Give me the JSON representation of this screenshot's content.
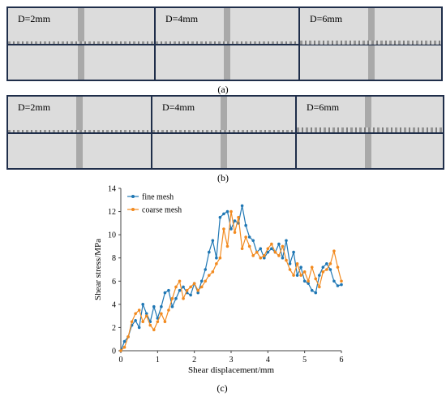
{
  "figure_a": {
    "caption": "(a)",
    "panels": [
      {
        "label": "D=2mm"
      },
      {
        "label": "D=4mm"
      },
      {
        "label": "D=6mm"
      }
    ]
  },
  "figure_b": {
    "caption": "(b)",
    "panels": [
      {
        "label": "D=2mm"
      },
      {
        "label": "D=4mm"
      },
      {
        "label": "D=6mm"
      }
    ]
  },
  "figure_c": {
    "caption": "(c)"
  },
  "colors": {
    "fine": "#1f77b4",
    "coarse": "#f28a1f",
    "frame": "#1f2e4a"
  },
  "chart_data": {
    "type": "line",
    "xlabel": "Shear displacement/mm",
    "ylabel": "Shear stress/MPa",
    "xlim": [
      0,
      6
    ],
    "ylim": [
      0,
      14
    ],
    "xticks": [
      "0",
      "1",
      "2",
      "3",
      "4",
      "5",
      "6"
    ],
    "yticks": [
      "0",
      "2",
      "4",
      "6",
      "8",
      "10",
      "12",
      "14"
    ],
    "grid": false,
    "legend": "top-left",
    "series": [
      {
        "name": "fine mesh",
        "x": [
          0,
          0.1,
          0.2,
          0.3,
          0.4,
          0.5,
          0.6,
          0.7,
          0.8,
          0.9,
          1.0,
          1.1,
          1.2,
          1.3,
          1.4,
          1.5,
          1.6,
          1.7,
          1.8,
          1.9,
          2.0,
          2.1,
          2.2,
          2.3,
          2.4,
          2.5,
          2.6,
          2.7,
          2.8,
          2.9,
          3.0,
          3.1,
          3.2,
          3.3,
          3.4,
          3.5,
          3.6,
          3.7,
          3.8,
          3.9,
          4.0,
          4.1,
          4.2,
          4.3,
          4.4,
          4.5,
          4.6,
          4.7,
          4.8,
          4.9,
          5.0,
          5.1,
          5.2,
          5.3,
          5.4,
          5.5,
          5.6,
          5.7,
          5.8,
          5.9,
          6.0
        ],
        "values": [
          0,
          0.8,
          1.2,
          2.2,
          2.6,
          2.0,
          4.0,
          3.2,
          2.5,
          3.8,
          2.8,
          3.8,
          5.0,
          5.2,
          3.8,
          4.5,
          5.2,
          5.5,
          5.0,
          4.8,
          5.8,
          5.0,
          6.0,
          7.0,
          8.5,
          9.5,
          8.0,
          11.5,
          11.8,
          12.0,
          10.5,
          11.2,
          11.0,
          12.5,
          10.8,
          9.8,
          9.5,
          8.5,
          8.8,
          8.0,
          8.5,
          8.8,
          8.5,
          9.2,
          8.0,
          9.5,
          7.5,
          8.5,
          6.5,
          7.2,
          6.0,
          5.8,
          5.2,
          5.0,
          6.5,
          7.2,
          7.5,
          7.0,
          6.0,
          5.6,
          5.7
        ]
      },
      {
        "name": "coarse mesh",
        "x": [
          0,
          0.1,
          0.2,
          0.3,
          0.4,
          0.5,
          0.6,
          0.7,
          0.8,
          0.9,
          1.0,
          1.1,
          1.2,
          1.3,
          1.4,
          1.5,
          1.6,
          1.7,
          1.8,
          1.9,
          2.0,
          2.1,
          2.2,
          2.3,
          2.4,
          2.5,
          2.6,
          2.7,
          2.8,
          2.9,
          3.0,
          3.1,
          3.2,
          3.3,
          3.4,
          3.5,
          3.6,
          3.7,
          3.8,
          3.9,
          4.0,
          4.1,
          4.2,
          4.3,
          4.4,
          4.5,
          4.6,
          4.7,
          4.8,
          4.9,
          5.0,
          5.1,
          5.2,
          5.3,
          5.4,
          5.5,
          5.6,
          5.7,
          5.8,
          5.9,
          6.0
        ],
        "values": [
          0,
          0.3,
          1.2,
          2.5,
          3.2,
          3.5,
          2.5,
          3.0,
          2.2,
          1.8,
          2.5,
          3.2,
          2.5,
          3.5,
          4.5,
          5.5,
          6.0,
          4.5,
          5.2,
          5.5,
          5.8,
          5.2,
          5.5,
          6.0,
          6.5,
          6.8,
          7.5,
          8.0,
          10.5,
          9.0,
          12.0,
          10.2,
          11.5,
          8.8,
          9.8,
          9.0,
          8.2,
          8.5,
          8.0,
          8.2,
          8.8,
          9.2,
          8.5,
          8.2,
          9.0,
          7.8,
          7.0,
          6.5,
          7.5,
          6.5,
          6.8,
          6.0,
          7.2,
          6.2,
          5.5,
          6.8,
          7.0,
          7.5,
          8.6,
          7.2,
          6.0
        ]
      }
    ]
  }
}
